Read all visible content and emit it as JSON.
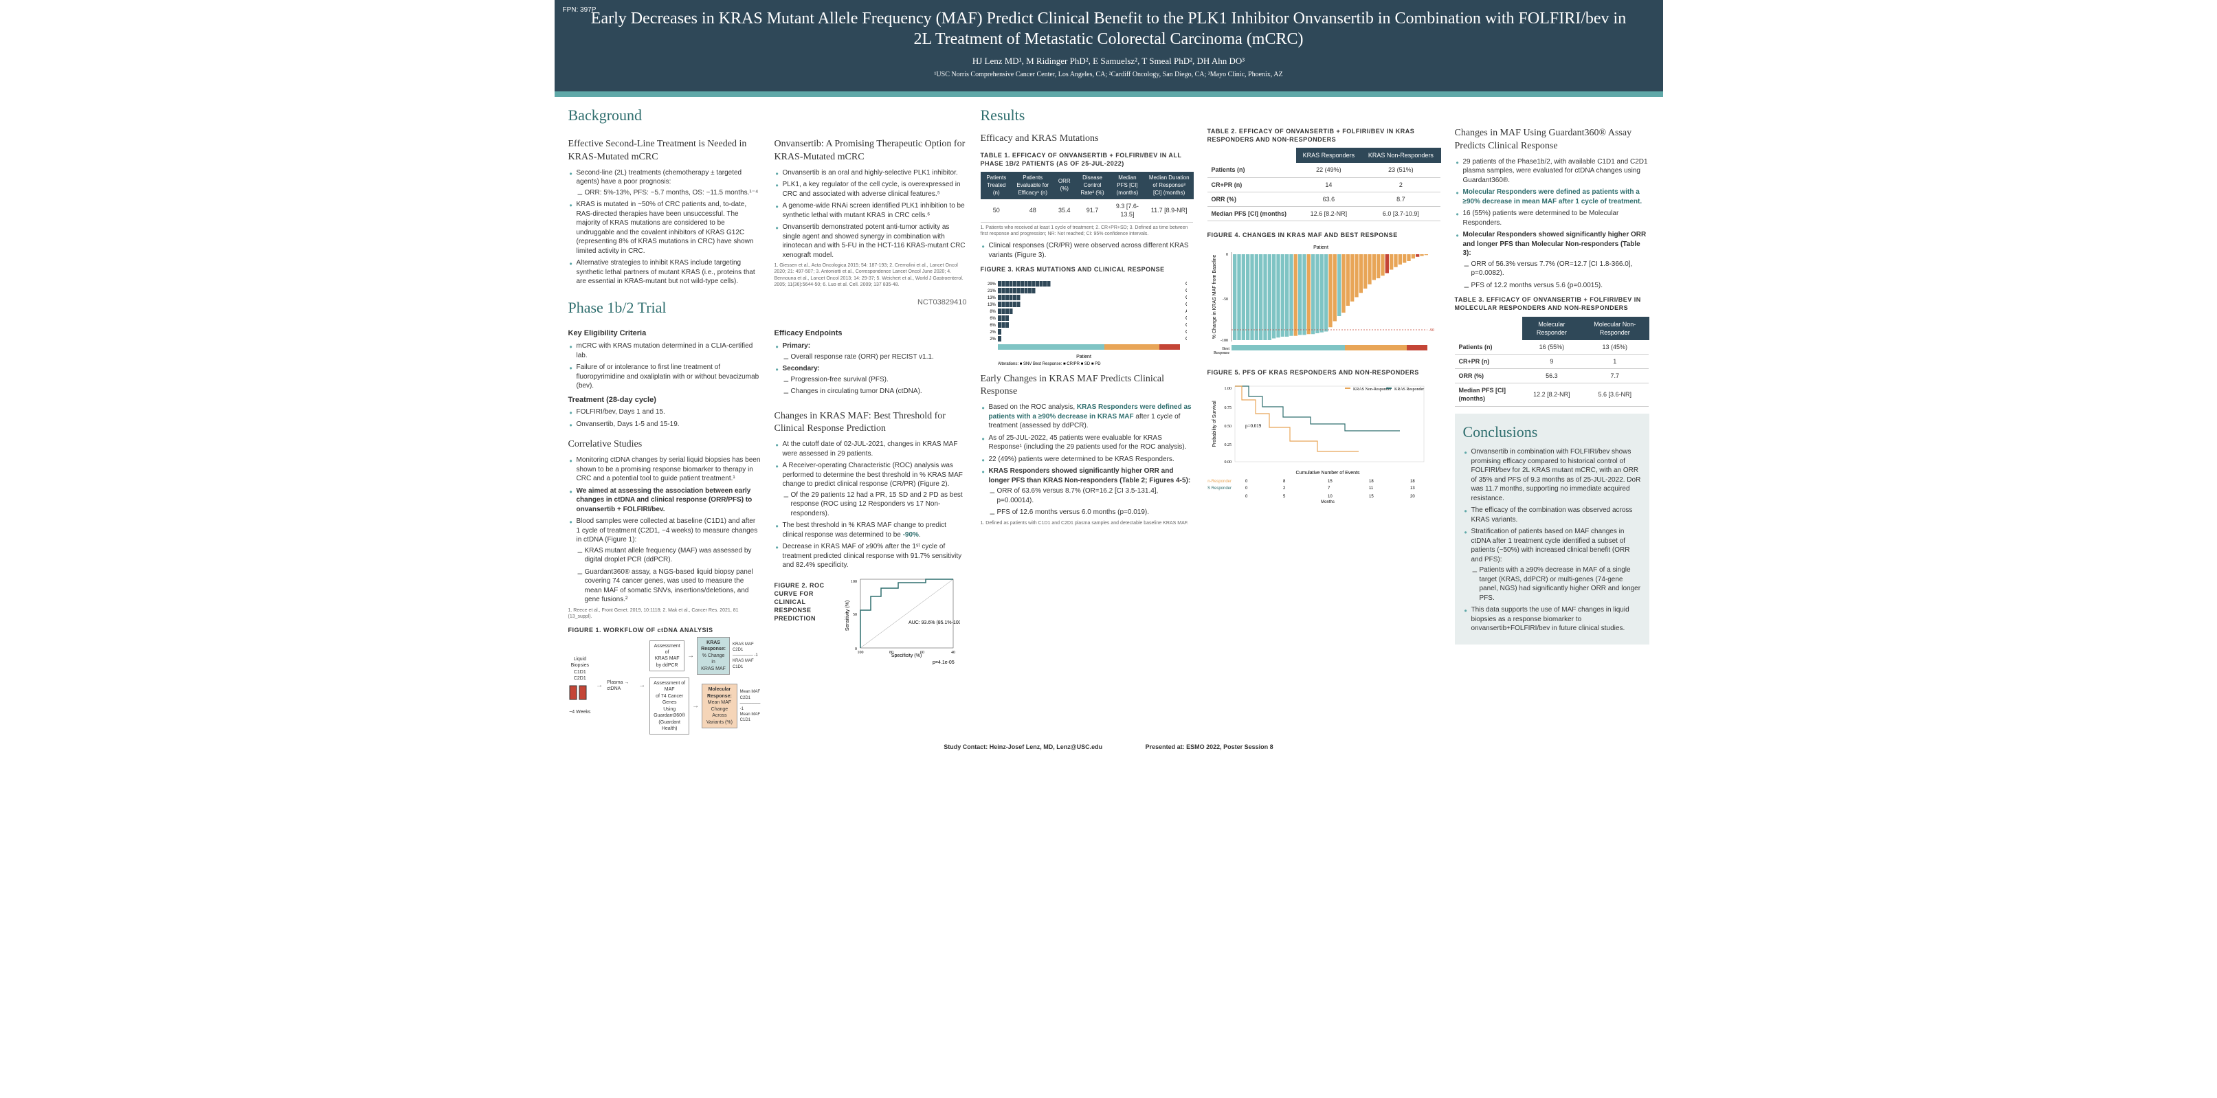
{
  "fpn": "FPN: 397P",
  "title": "Early Decreases in KRAS Mutant Allele Frequency (MAF) Predict Clinical Benefit to the PLK1 Inhibitor Onvansertib in Combination with FOLFIRI/bev in 2L Treatment of Metastatic Colorectal Carcinoma (mCRC)",
  "authors": "HJ Lenz MD¹, M Ridinger PhD², E Samuelsz², T Smeal PhD², DH Ahn DO³",
  "affils": "¹USC Norris Comprehensive Cancer Center, Los Angeles, CA; ²Cardiff Oncology, San Diego, CA; ³Mayo Clinic, Phoenix, AZ",
  "bg_h": "Background",
  "bg_sub1": "Effective Second-Line Treatment is Needed in KRAS-Mutated mCRC",
  "bg1": [
    "Second-line (2L) treatments (chemotherapy ± targeted agents) have a poor prognosis:",
    "KRAS is mutated in ~50% of CRC patients and, to-date, RAS-directed therapies have been unsuccessful. The majority of KRAS mutations are considered to be undruggable and the covalent inhibitors of KRAS G12C (representing 8% of KRAS mutations in CRC) have shown limited activity in CRC.",
    "Alternative strategies to inhibit KRAS include targeting synthetic lethal partners of mutant KRAS (i.e., proteins that are essential in KRAS-mutant but not wild-type cells)."
  ],
  "bg1_sub": "ORR: 5%-13%, PFS: ~5.7 months, OS: ~11.5 months.¹⁻⁴",
  "bg_sub2": "Onvansertib: A Promising Therapeutic Option for KRAS-Mutated mCRC",
  "bg2": [
    "Onvansertib is an oral and highly-selective PLK1 inhibitor.",
    "PLK1, a key regulator of the cell cycle, is overexpressed in CRC and associated with adverse clinical features.⁵",
    "A genome-wide RNAi screen identified PLK1 inhibition to be synthetic lethal with mutant KRAS in CRC cells.⁶",
    "Onvansertib demonstrated potent anti-tumor activity as single agent and showed synergy in combination with irinotecan and with 5-FU in the HCT-116 KRAS-mutant CRC xenograft model."
  ],
  "bg_refs": "1. Giessen et al., Acta Oncologica 2015; 54: 187-193;   2. Cremolini et al., Lancet Oncol 2020; 21: 497-507; 3. Antoniotti et al., Correspondence Lancet Oncol June 2020;   4. Bennouna et al., Lancet Oncol 2013; 14: 29-37; 5. Weichert et al., World J Gastroenterol. 2005; 11(36):5644-50;   6. Luo et al. Cell. 2009; 137 835-48.",
  "trial_h": "Phase 1b/2 Trial",
  "trial_id": "NCT03829410",
  "kec_h": "Key Eligibility Criteria",
  "kec": [
    "mCRC with KRAS mutation determined in a CLIA-certified lab.",
    "Failure of or intolerance to first line treatment of fluoropyrimidine and oxaliplatin with or without bevacizumab (bev)."
  ],
  "treat_h": "Treatment (28-day cycle)",
  "treat": [
    "FOLFIRI/bev, Days 1 and 15.",
    "Onvansertib, Days 1-5 and 15-19."
  ],
  "corr_h": "Correlative Studies",
  "corr": [
    "Monitoring ctDNA changes by serial liquid biopsies has been shown to be a promising response biomarker to therapy in CRC and a potential tool to guide patient treatment.¹",
    "We aimed at assessing the association between early changes in ctDNA and clinical response (ORR/PFS) to onvansertib + FOLFIRI/bev.",
    "Blood samples were collected at baseline (C1D1) and after 1 cycle of treatment (C2D1, ~4 weeks) to measure changes in ctDNA (Figure 1):"
  ],
  "corr_subs": [
    "KRAS mutant allele frequency (MAF) was assessed by digital droplet PCR (ddPCR).",
    "Guardant360® assay, a NGS-based liquid biopsy panel covering 74 cancer genes, was used to measure the mean MAF of somatic SNVs, insertions/deletions, and gene fusions.²"
  ],
  "corr_refs": "1. Reece et al., Front Genet. 2019, 10:1118;   2. Mak et al., Cancer Res. 2021, 81 (13_suppl).",
  "eff_h": "Efficacy Endpoints",
  "eff_pri_h": "Primary:",
  "eff_pri": "Overall response rate (ORR) per RECIST v1.1.",
  "eff_sec_h": "Secondary:",
  "eff_sec": [
    "Progression-free survival (PFS).",
    "Changes in circulating tumor DNA (ctDNA)."
  ],
  "maf_h": "Changes in KRAS MAF: Best Threshold for Clinical Response Prediction",
  "maf": [
    "At the cutoff date of 02-JUL-2021, changes in KRAS MAF were assessed in 29 patients.",
    "A Receiver-operating Characteristic (ROC) analysis was performed to determine the best threshold in % KRAS MAF change to predict clinical response (CR/PR) (Figure 2).",
    "The best threshold in % KRAS MAF change to predict clinical response was determined to be -90%.",
    "Decrease in KRAS MAF of ≥90% after the 1ˢᵗ cycle of treatment predicted clinical response with 91.7% sensitivity and 82.4% specificity."
  ],
  "maf_sub": "Of the 29 patients 12 had a PR, 15 SD and 2 PD as best response (ROC using 12 Responders vs 17 Non-responders).",
  "fig1_t": "FIGURE 1. WORKFLOW OF ctDNA ANALYSIS",
  "fig2_t": "FIGURE 2. ROC CURVE FOR CLINICAL RESPONSE PREDICTION",
  "fig2_auc": "AUC: 93.6% (85.1%-100.0%)",
  "fig2_p": "p=4.1e-05",
  "results_h": "Results",
  "res_sub1": "Efficacy and KRAS Mutations",
  "tbl1_t": "TABLE 1. EFFICACY OF ONVANSERTIB + FOLFIRI/BEV IN ALL PHASE 1B/2 PATIENTS (AS OF 25-JUL-2022)",
  "tbl1_headers": [
    "Patients Treated (n)",
    "Patients Evaluable for Efficacy¹ (n)",
    "ORR (%)",
    "Disease Control Rate² (%)",
    "Median PFS [CI] (months)",
    "Median Duration of Response³ [CI] (months)"
  ],
  "tbl1_row": [
    "50",
    "48",
    "35.4",
    "91.7",
    "9.3 [7.6-13.5]",
    "11.7 [8.9-NR]"
  ],
  "tbl1_fn": "1. Patients who received at least 1 cycle of treatment;   2. CR+PR+SD;   3. Defined as time between first response and progression;   NR: Not reached;   CI: 95% confidence intervals.",
  "res_b1": "Clinical responses (CR/PR) were observed across different KRAS variants (Figure 3).",
  "fig3_t": "FIGURE 3. KRAS MUTATIONS AND CLINICAL RESPONSE",
  "early_h": "Early Changes in KRAS MAF Predicts Clinical Response",
  "early": [
    "Based on the ROC analysis, KRAS Responders were defined as patients with a ≥90% decrease in KRAS MAF after 1 cycle of treatment (assessed by ddPCR).",
    "As of 25-JUL-2022, 45 patients were evaluable for KRAS Response¹ (including the 29 patients used for the ROC analysis).",
    "22 (49%) patients were determined to be KRAS Responders.",
    "KRAS Responders showed significantly higher ORR and longer PFS than KRAS Non-responders (Table 2; Figures 4-5):"
  ],
  "early_subs": [
    "ORR of 63.6% versus 8.7% (OR=16.2 [CI 3.5-131.4], p=0.00014).",
    "PFS of 12.6 months versus 6.0 months (p=0.019)."
  ],
  "early_fn": "1. Defined as patients with C1D1 and C2D1 plasma samples and detectable baseline KRAS MAF.",
  "tbl2_t": "TABLE 2. EFFICACY OF ONVANSERTIB + FOLFIRI/BEV IN KRAS RESPONDERS AND NON-RESPONDERS",
  "tbl2_h1": "KRAS Responders",
  "tbl2_h2": "KRAS Non-Responders",
  "tbl2_rows": [
    [
      "Patients (n)",
      "22 (49%)",
      "23 (51%)"
    ],
    [
      "CR+PR (n)",
      "14",
      "2"
    ],
    [
      "ORR (%)",
      "63.6",
      "8.7"
    ],
    [
      "Median PFS [CI] (months)",
      "12.6 [8.2-NR]",
      "6.0 [3.7-10.9]"
    ]
  ],
  "fig4_t": "FIGURE 4. CHANGES IN KRAS MAF AND BEST RESPONSE",
  "fig5_t": "FIGURE 5. PFS OF KRAS RESPONDERS AND NON-RESPONDERS",
  "fig5_p": "p=0.019",
  "fig5_risk_h": "Cumulative Number of Events",
  "fig5_risk": [
    [
      "KRAS Non-Responder",
      "0",
      "8",
      "15",
      "18",
      "18"
    ],
    [
      "KRAS Responder",
      "0",
      "2",
      "7",
      "11",
      "13"
    ]
  ],
  "g360_h": "Changes in MAF Using Guardant360® Assay Predicts Clinical Response",
  "g360": [
    "29 patients of the Phase1b/2, with available C1D1 and C2D1 plasma samples, were evaluated for ctDNA changes using Guardant360®.",
    "Molecular Responders were defined as patients with a ≥90% decrease in mean MAF after 1 cycle of treatment.",
    "16 (55%) patients were determined to be Molecular Responders.",
    "Molecular Responders showed significantly higher ORR and longer PFS than Molecular Non-responders (Table 3):"
  ],
  "g360_subs": [
    "ORR of 56.3% versus 7.7% (OR=12.7 [CI 1.8-366.0], p=0.0082).",
    "PFS of 12.2 months versus 5.6 (p=0.0015)."
  ],
  "tbl3_t": "TABLE 3. EFFICACY OF ONVANSERTIB + FOLFIRI/BEV IN MOLECULAR RESPONDERS AND NON-RESPONDERS",
  "tbl3_h1": "Molecular Responder",
  "tbl3_h2": "Molecular Non-Responder",
  "tbl3_rows": [
    [
      "Patients (n)",
      "16 (55%)",
      "13 (45%)"
    ],
    [
      "CR+PR (n)",
      "9",
      "1"
    ],
    [
      "ORR (%)",
      "56.3",
      "7.7"
    ],
    [
      "Median PFS [CI] (months)",
      "12.2 [8.2-NR]",
      "5.6 [3.6-NR]"
    ]
  ],
  "conc_h": "Conclusions",
  "conc": [
    "Onvansertib in combination with FOLFIRI/bev shows promising efficacy compared to historical control of FOLFIRI/bev for 2L KRAS mutant mCRC, with an ORR of 35% and PFS of 9.3 months as of 25-JUL-2022. DoR was 11.7 months, supporting no immediate acquired resistance.",
    "The efficacy of the combination was observed across KRAS variants.",
    "Stratification of patients based on MAF changes in ctDNA after 1 treatment cycle identified a subset of patients (~50%) with increased clinical benefit (ORR and PFS):",
    "This data supports the use of MAF changes in liquid biopsies as a response biomarker to onvansertib+FOLFIRI/bev in future clinical studies."
  ],
  "conc_sub": "Patients with a ≥90% decrease in MAF of a single target (KRAS, ddPCR) or multi-genes (74-gene panel, NGS) had significantly higher ORR and longer PFS.",
  "footer_contact": "Study Contact: Heinz-Josef Lenz, MD, Lenz@USC.edu",
  "footer_pres": "Presented at: ESMO 2022, Poster Session 8",
  "fig3_variants": [
    "G12D",
    "G12V",
    "G12A",
    "G13D",
    "A146T",
    "G12C",
    "G12S",
    "G12R",
    "Q61H"
  ],
  "fig3_pcts": [
    "29%",
    "21%",
    "13%",
    "13%",
    "8%",
    "6%",
    "6%",
    "2%",
    "2%"
  ],
  "colors": {
    "header_bg": "#2f4858",
    "teal": "#5fa8a8",
    "teal_dark": "#2f6e6e",
    "cr_pr": "#7fc4c4",
    "sd": "#e8a557",
    "pd": "#c44536",
    "snv": "#2f4858"
  }
}
